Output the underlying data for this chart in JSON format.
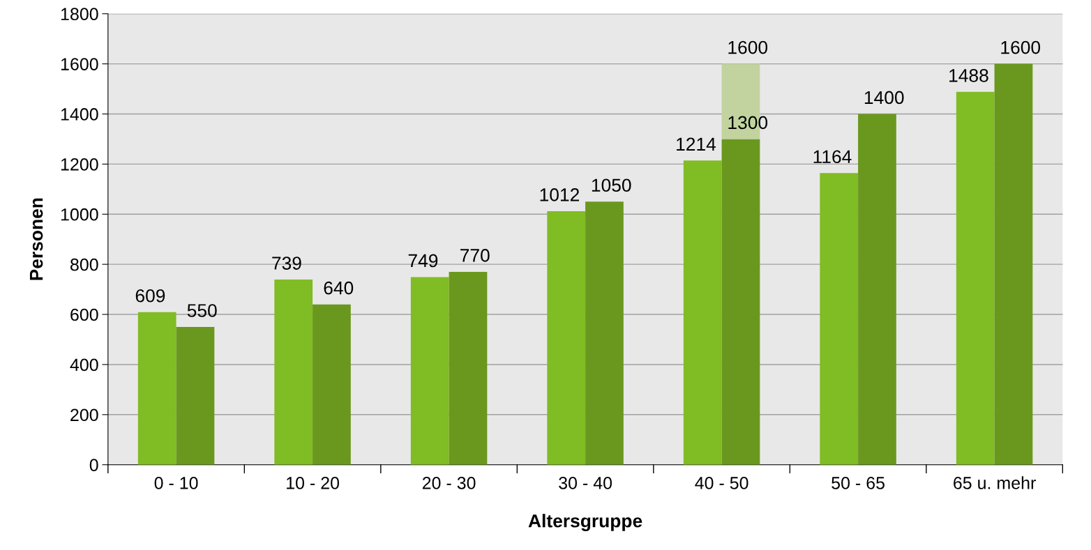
{
  "chart_data": {
    "type": "bar",
    "xlabel": "Altersgruppe",
    "ylabel": "Personen",
    "categories": [
      "0 - 10",
      "10 - 20",
      "20 - 30",
      "30 - 40",
      "40 - 50",
      "50 - 65",
      "65 u. mehr"
    ],
    "series": [
      {
        "color": "#80bc23",
        "values": [
          609,
          739,
          749,
          1012,
          1214,
          1164,
          1488
        ]
      },
      {
        "color": "#6a981e",
        "values": [
          550,
          640,
          770,
          1050,
          1300,
          1400,
          1600
        ]
      },
      {
        "color": "#c2d3a0",
        "values": [
          null,
          null,
          null,
          null,
          300,
          null,
          null
        ],
        "base": [
          null,
          null,
          null,
          null,
          1300,
          null,
          null
        ],
        "value_labels": [
          null,
          null,
          null,
          null,
          "1600",
          null,
          null
        ]
      }
    ],
    "ylim": [
      0,
      1800
    ],
    "yticks": [
      0,
      200,
      400,
      600,
      800,
      1000,
      1200,
      1400,
      1600,
      1800
    ],
    "grid": "y",
    "data_labels": true
  }
}
